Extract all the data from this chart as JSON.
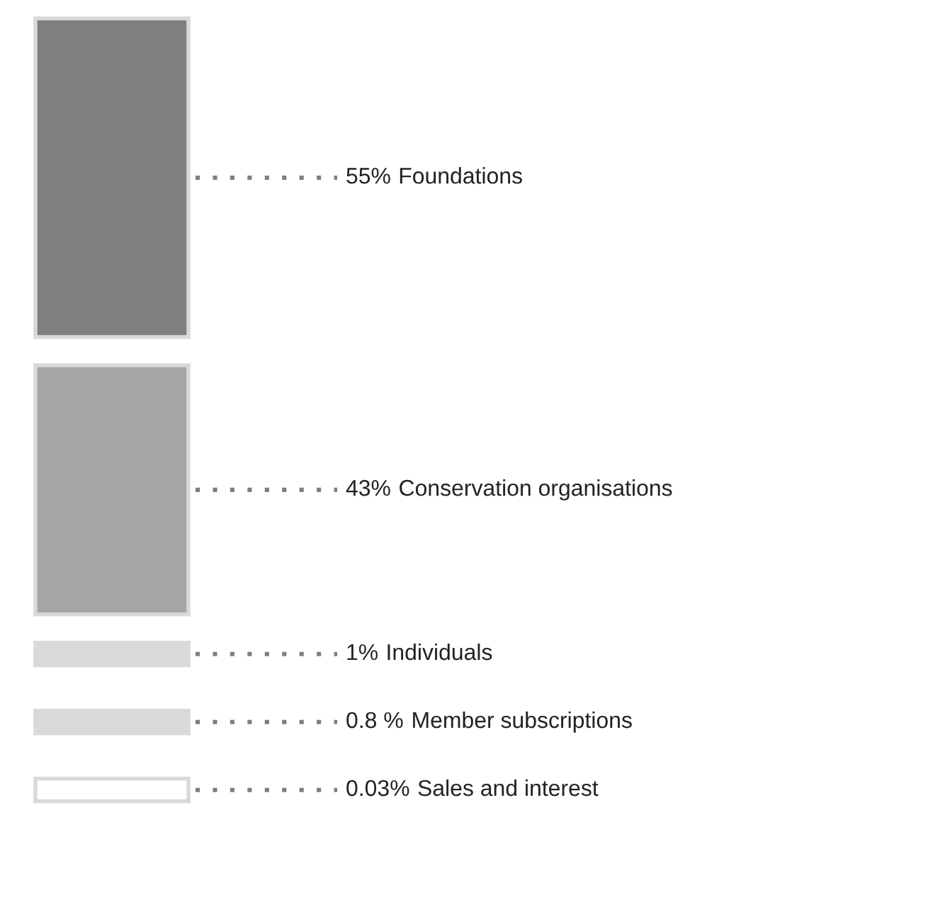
{
  "chart_data": {
    "type": "other",
    "categories": [
      "Foundations",
      "Conservation organisations",
      "Individuals",
      "Member subscriptions",
      "Sales and interest"
    ],
    "values": [
      55,
      43,
      1,
      0.8,
      0.03
    ],
    "value_labels": [
      "55%",
      "43%",
      "1%",
      "0.8 %",
      "0.03%"
    ],
    "colors": [
      "#7f7f7f",
      "#a5a5a5",
      "#d9d9d9",
      "#d9d9d9",
      "#ffffff"
    ]
  }
}
